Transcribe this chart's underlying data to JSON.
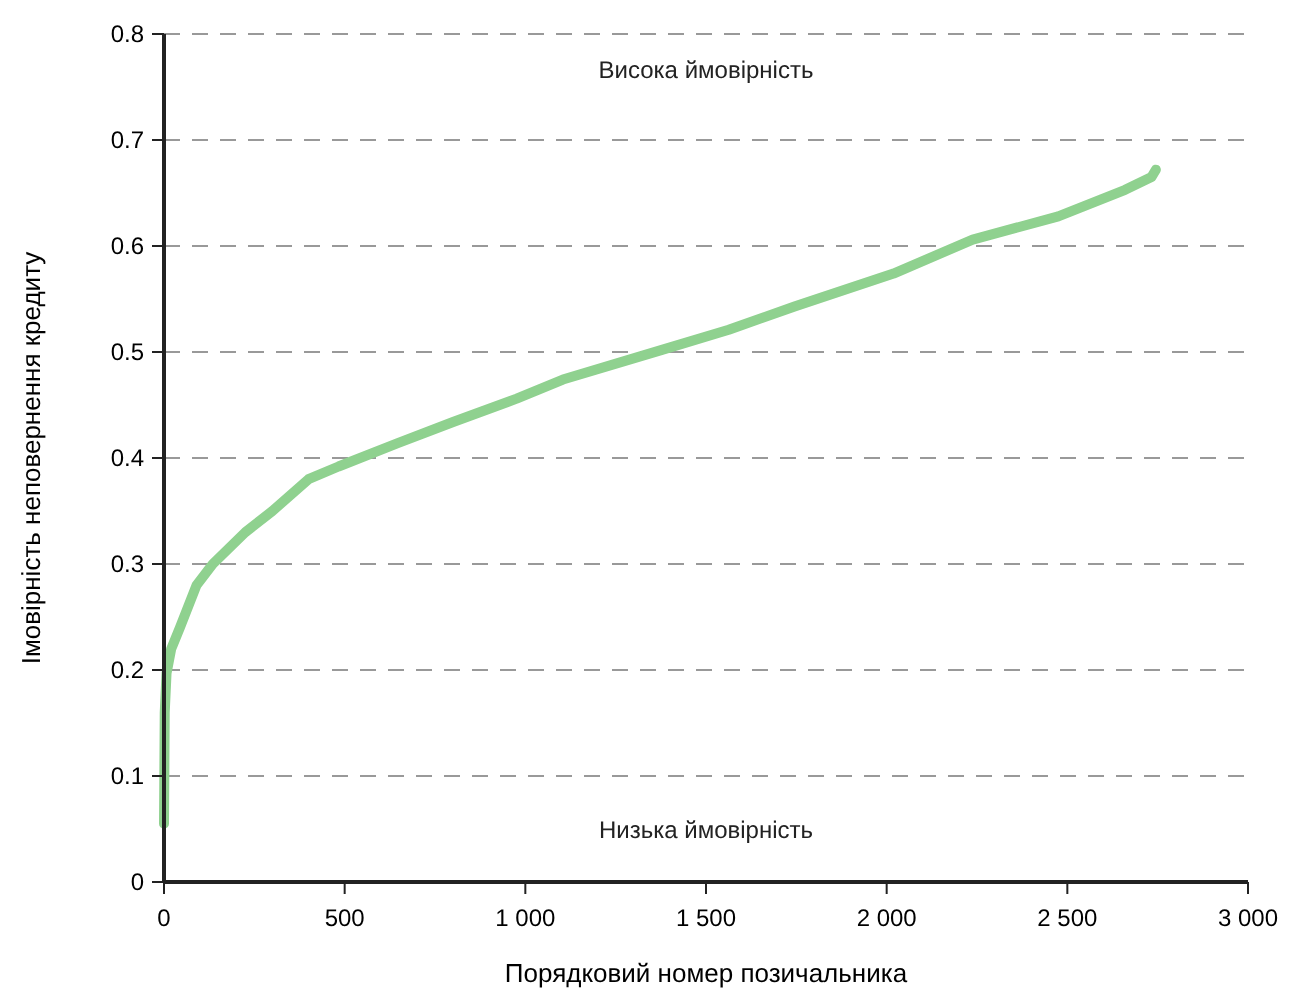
{
  "chart_data": {
    "type": "line",
    "xlabel": "Порядковий номер позичальника",
    "ylabel": "Імовірність неповернення кредиту",
    "annotations": [
      "Висока ймовірність",
      "Низька ймовірність"
    ],
    "series": [
      {
        "color": "#8fd18f",
        "x": [
          0,
          2,
          7,
          20,
          44,
          90,
          135,
          225,
          300,
          400,
          483,
          647,
          800,
          976,
          1104,
          1378,
          1563,
          1745,
          2019,
          2238,
          2475,
          2660,
          2733,
          2745
        ],
        "values": [
          0.055,
          0.16,
          0.197,
          0.22,
          0.24,
          0.28,
          0.3,
          0.33,
          0.35,
          0.38,
          0.392,
          0.414,
          0.434,
          0.456,
          0.474,
          0.502,
          0.521,
          0.543,
          0.574,
          0.606,
          0.628,
          0.653,
          0.665,
          0.672
        ]
      }
    ],
    "xlim": [
      0,
      3000
    ],
    "xticks": [
      0,
      500,
      {
        "value": 1000,
        "label": "1 000"
      },
      {
        "value": 1500,
        "label": "1 500"
      },
      {
        "value": 2000,
        "label": "2 000"
      },
      {
        "value": 2500,
        "label": "2 500"
      },
      {
        "value": 3000,
        "label": "3 000"
      }
    ],
    "ylim": [
      0,
      0.8
    ],
    "yticks": [
      0,
      0.1,
      0.2,
      0.3,
      0.4,
      0.5,
      0.6,
      0.7,
      0.8
    ],
    "grid": "y",
    "line_style": "solid",
    "marker": "none"
  }
}
